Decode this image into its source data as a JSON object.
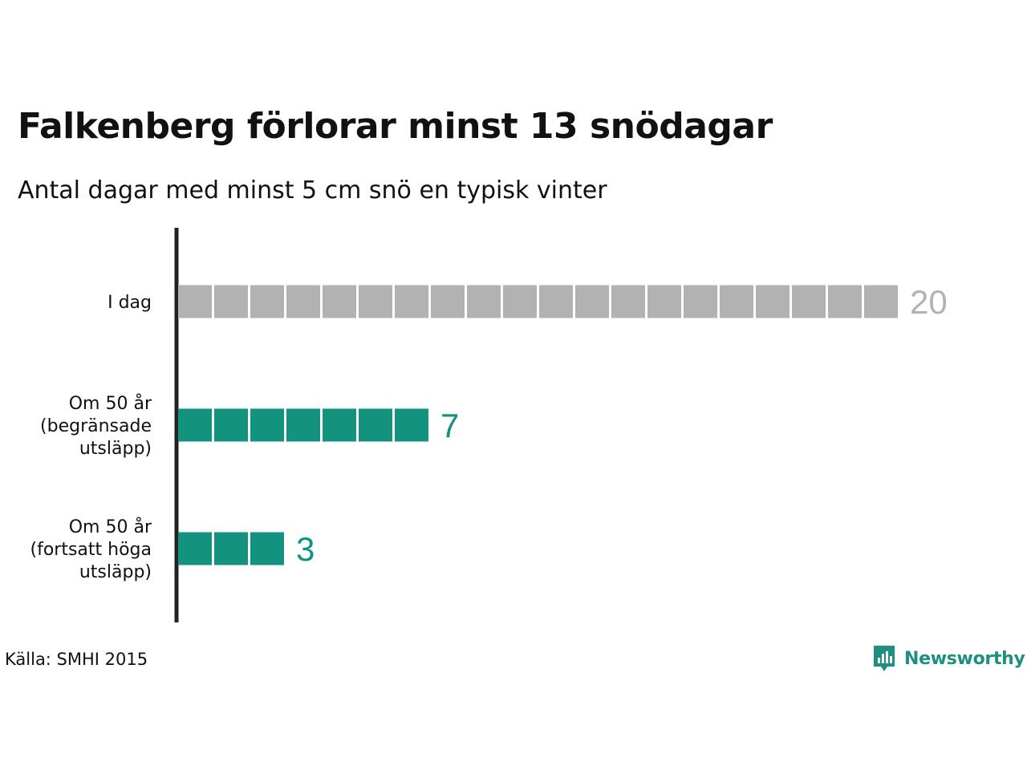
{
  "colors": {
    "today": "#b2b2b2",
    "future": "#12927f",
    "axis": "#222222",
    "text": "#111111",
    "brand": "#1f8f7e"
  },
  "chart_data": {
    "type": "bar",
    "title": "Falkenberg förlorar minst 13 snödagar",
    "subtitle": "Antal dagar med minst 5 cm snö en typisk vinter",
    "categories": [
      [
        "I dag"
      ],
      [
        "Om 50 år",
        "(begränsade",
        "utsläpp)"
      ],
      [
        "Om 50 år",
        "(fortsatt höga",
        "utsläpp)"
      ]
    ],
    "values": [
      20,
      7,
      3
    ],
    "value_labels": [
      "20",
      "7",
      "3"
    ],
    "bar_colors": [
      "#b2b2b2",
      "#12927f",
      "#12927f"
    ],
    "unit_blocks": true,
    "xlim": [
      0,
      20
    ],
    "grid": false,
    "legend": "none"
  },
  "source": "Källa: SMHI 2015",
  "brand": {
    "name": "Newsworthy",
    "icon": "newsworthy-logo-icon"
  }
}
